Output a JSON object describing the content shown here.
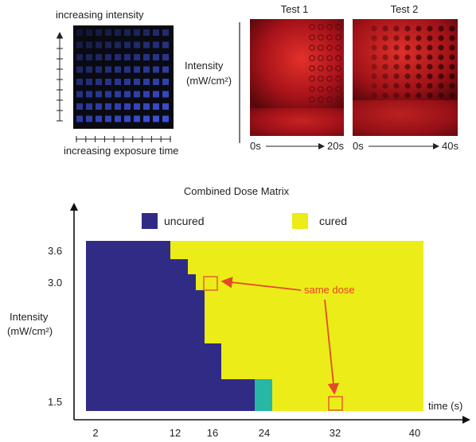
{
  "panel_a": {
    "top_label": "increasing intensity",
    "bottom_label": "increasing exposure time",
    "grid_rows": 8,
    "grid_cols": 10,
    "square_color": "#3a50d8",
    "background_color": "#0a0a12"
  },
  "panel_b": {
    "ylabel_line1": "Intensity",
    "ylabel_line2": "(mW/cm²)",
    "tests": [
      {
        "title": "Test 1",
        "start": "0s",
        "end": "20s"
      },
      {
        "title": "Test 2",
        "start": "0s",
        "end": "40s"
      }
    ],
    "image_color": "#c0181a"
  },
  "chart_data": {
    "type": "heatmap",
    "title": "Combined Dose Matrix",
    "xlabel": "time (s)",
    "ylabel_line1": "Intensity",
    "ylabel_line2": "(mW/cm²)",
    "x_ticks": [
      "2",
      "12",
      "16",
      "24",
      "32",
      "40"
    ],
    "y_ticks": [
      "3.6",
      "3.0",
      "1.5"
    ],
    "legend": [
      {
        "label": "uncured",
        "color": "#302c86"
      },
      {
        "label": "cured",
        "color": "#ecec18"
      }
    ],
    "annotation": "same dose",
    "transition_color": "#26b8a4",
    "boundary": [
      {
        "intensity": 3.6,
        "time": 12
      },
      {
        "intensity": 3.3,
        "time": 15
      },
      {
        "intensity": 2.7,
        "time": 16
      },
      {
        "intensity": 2.1,
        "time": 18
      },
      {
        "intensity": 1.8,
        "time": 20
      },
      {
        "intensity": 1.5,
        "time": 24
      }
    ]
  }
}
